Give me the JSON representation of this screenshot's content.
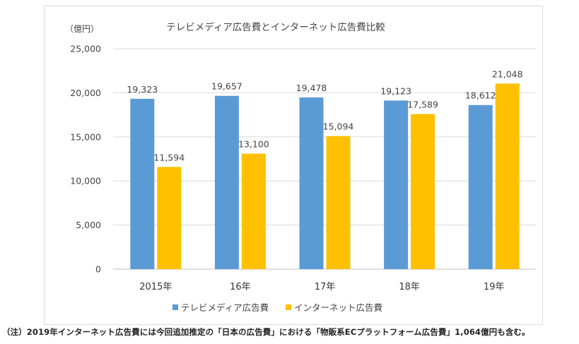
{
  "chart_data": {
    "type": "bar",
    "title": "テレビメディア広告費とインターネット広告費比較",
    "unit_label": "（億円）",
    "categories": [
      "2015年",
      "16年",
      "17年",
      "18年",
      "19年"
    ],
    "series": [
      {
        "name": "テレビメディア広告費",
        "color": "#5b9bd5",
        "values": [
          19323,
          19657,
          19478,
          19123,
          18612
        ],
        "labels": [
          "19,323",
          "19,657",
          "19,478",
          "19,123",
          "18,612"
        ]
      },
      {
        "name": "インターネット広告費",
        "color": "#ffc000",
        "values": [
          11594,
          13100,
          15094,
          17589,
          21048
        ],
        "labels": [
          "11,594",
          "13,100",
          "15,094",
          "17,589",
          "21,048"
        ]
      }
    ],
    "ylim": [
      0,
      25000
    ],
    "yticks": [
      0,
      5000,
      10000,
      15000,
      20000,
      25000
    ],
    "ytick_labels": [
      "0",
      "5,000",
      "10,000",
      "15,000",
      "20,000",
      "25,000"
    ],
    "grid": true,
    "legend_position": "bottom"
  },
  "footnote": "（注）2019年インターネット広告費には今回追加推定の「日本の広告費」における「物販系ECプラットフォーム広告費」1,064億円も含む。"
}
